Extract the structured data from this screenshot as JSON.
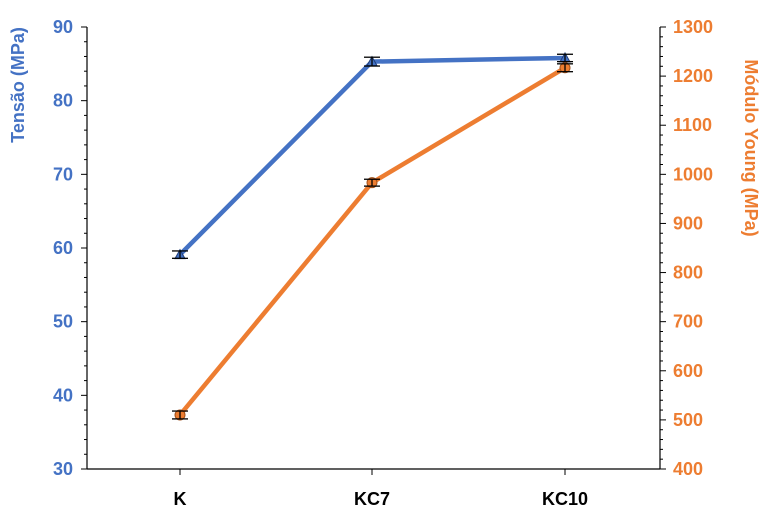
{
  "chart_data": {
    "type": "line",
    "categories": [
      "K",
      "KC7",
      "KC10"
    ],
    "y_left": {
      "label": "Tensão (MPa)",
      "min": 30,
      "max": 90,
      "ticks": [
        30,
        40,
        50,
        60,
        70,
        80,
        90
      ],
      "color": "#4472C4"
    },
    "y_right": {
      "label": "Módulo Young (MPa)",
      "min": 400,
      "max": 1300,
      "ticks": [
        400,
        500,
        600,
        700,
        800,
        900,
        1000,
        1100,
        1200,
        1300
      ],
      "color": "#ED7D31"
    },
    "series": [
      {
        "axis": "left",
        "color": "#4472C4",
        "marker": "triangle",
        "values": [
          59.1,
          85.3,
          85.8
        ],
        "errors": [
          0.5,
          0.6,
          0.5
        ]
      },
      {
        "axis": "right",
        "color": "#ED7D31",
        "marker": "circle",
        "values": [
          510,
          983,
          1217
        ],
        "errors": [
          8,
          7,
          8
        ]
      }
    ],
    "tick_label_color": "#000000",
    "grid": false
  }
}
